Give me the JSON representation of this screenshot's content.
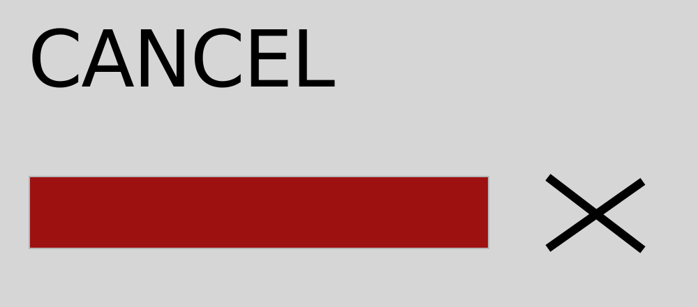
{
  "dialog": {
    "title": "CANCEL",
    "progress_fraction": 1.0,
    "colors": {
      "background": "#d6d6d6",
      "progress_fill": "#9d1111",
      "progress_border": "#b5b5b5",
      "text": "#000000"
    },
    "close_icon": "close-icon"
  }
}
